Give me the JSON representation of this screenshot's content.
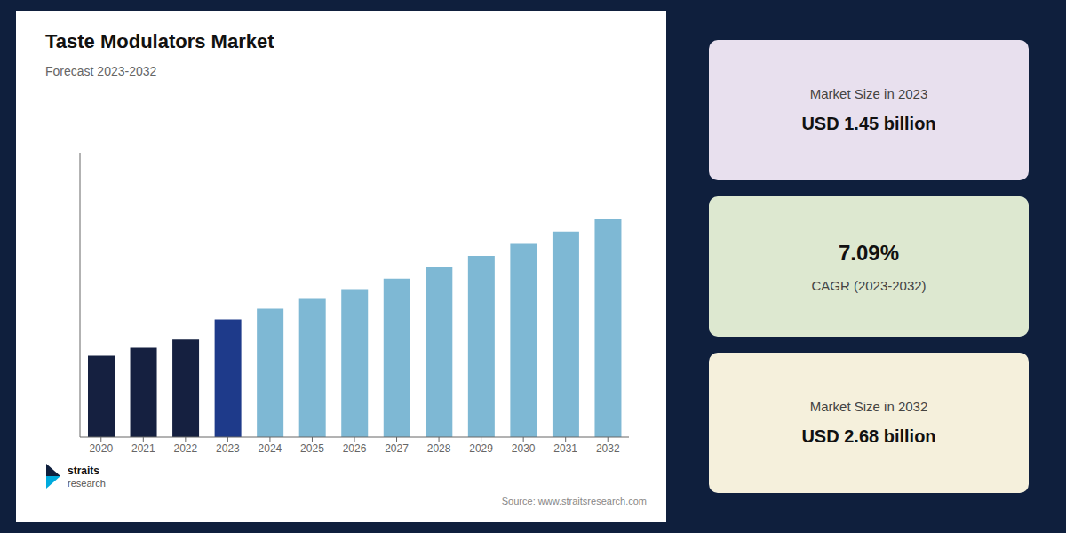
{
  "chart_data": {
    "type": "bar",
    "title": "Taste Modulators Market",
    "subtitle": "Forecast 2023-2032",
    "categories": [
      "2020",
      "2021",
      "2022",
      "2023",
      "2024",
      "2025",
      "2026",
      "2027",
      "2028",
      "2029",
      "2030",
      "2031",
      "2032"
    ],
    "values": [
      1.0,
      1.1,
      1.2,
      1.45,
      1.58,
      1.7,
      1.82,
      1.95,
      2.09,
      2.23,
      2.38,
      2.53,
      2.68
    ],
    "colors": [
      "#152040",
      "#152040",
      "#152040",
      "#1e3a8a",
      "#7eb8d4",
      "#7eb8d4",
      "#7eb8d4",
      "#7eb8d4",
      "#7eb8d4",
      "#7eb8d4",
      "#7eb8d4",
      "#7eb8d4",
      "#7eb8d4"
    ],
    "ylim": [
      0,
      3.5
    ],
    "tick_labels": "x",
    "grid": false,
    "annotations": [
      "Source: www.straitsresearch.com",
      "straits",
      "research",
      "Market Size in 2023",
      "USD 1.45 billion",
      "7.09%",
      "CAGR (2023-2032)",
      "Market Size in 2032",
      "USD 2.68 billion"
    ]
  }
}
